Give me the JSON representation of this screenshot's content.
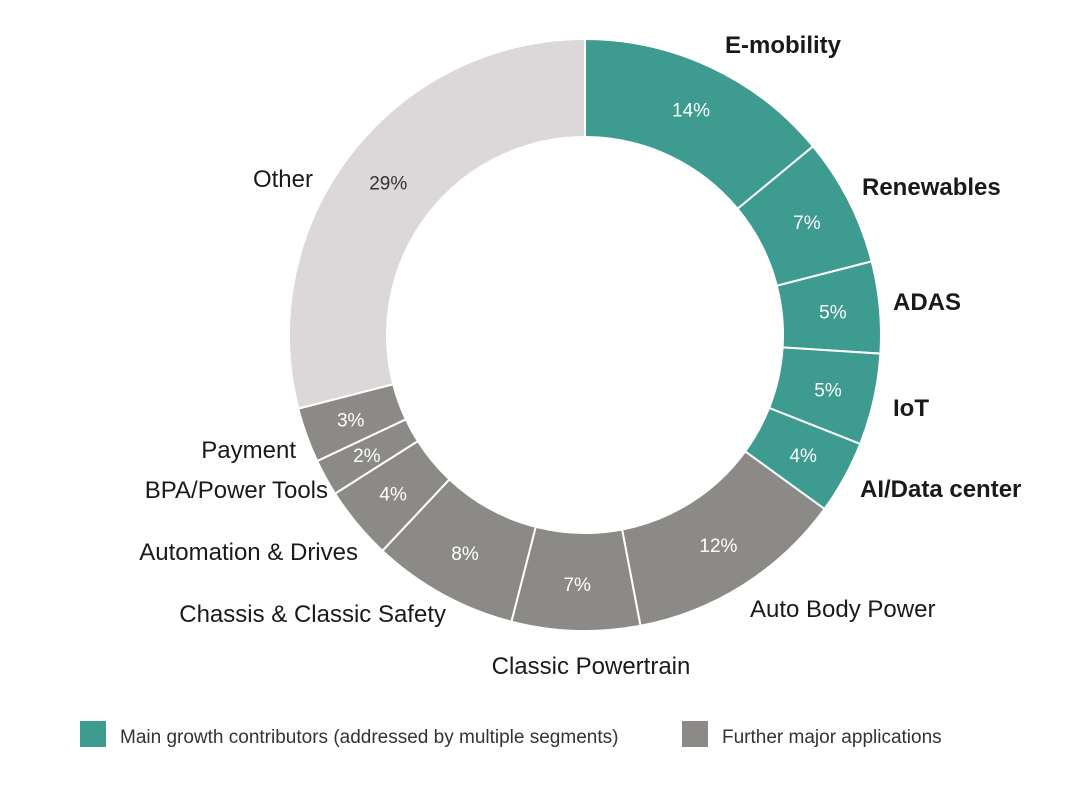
{
  "chart_data": {
    "type": "pie",
    "subtype": "donut",
    "colors": {
      "growth": "#3d9b8f",
      "major": "#8c8a86",
      "other": "#dcd7d8"
    },
    "slices": [
      {
        "name": "E-mobility",
        "pct_label": "14%",
        "value": 14,
        "group": "growth"
      },
      {
        "name": "Renewables",
        "pct_label": "7%",
        "value": 7,
        "group": "growth"
      },
      {
        "name": "ADAS",
        "pct_label": "5%",
        "value": 5,
        "group": "growth"
      },
      {
        "name": "IoT",
        "pct_label": "5%",
        "value": 5,
        "group": "growth"
      },
      {
        "name": "AI/Data center",
        "pct_label": "4%",
        "value": 4,
        "group": "growth"
      },
      {
        "name": "Auto Body Power",
        "pct_label": "12%",
        "value": 12,
        "group": "major"
      },
      {
        "name": "Classic Powertrain",
        "pct_label": "7%",
        "value": 7,
        "group": "major"
      },
      {
        "name": "Chassis & Classic Safety",
        "pct_label": "8%",
        "value": 8,
        "group": "major"
      },
      {
        "name": "Automation & Drives",
        "pct_label": "4%",
        "value": 4,
        "group": "major"
      },
      {
        "name": "BPA/Power Tools",
        "pct_label": "2%",
        "value": 2,
        "group": "major"
      },
      {
        "name": "Payment",
        "pct_label": "3%",
        "value": 3,
        "group": "major"
      },
      {
        "name": "Other",
        "pct_label": "29%",
        "value": 29,
        "group": "other"
      }
    ],
    "legend": [
      {
        "label": "Main growth contributors (addressed by multiple segments)",
        "group": "growth"
      },
      {
        "label": "Further major applications",
        "group": "major"
      }
    ]
  }
}
